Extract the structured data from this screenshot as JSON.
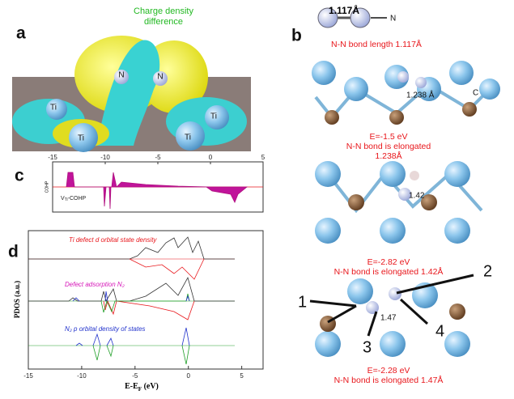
{
  "panel_a": {
    "letter": "a",
    "title": "Charge density difference",
    "atoms": [
      "N",
      "N",
      "Ti",
      "Ti",
      "Ti",
      "Ti"
    ]
  },
  "panel_b": {
    "letter": "b",
    "top_bond": "1.117Å",
    "top_atom": "N",
    "top_caption": "N-N bond  length 1.117Å",
    "s1_atom": "C",
    "s1_bond": "1.238 Å",
    "s1_caption": [
      "E=-1.5 eV",
      "N-N bond is elongated",
      "1.238Å"
    ],
    "s2_bond": "1.42",
    "s2_caption": [
      "E=-2.82 eV",
      "N-N bond is elongated 1.42Å"
    ],
    "s3_arrows": [
      "1",
      "2",
      "3",
      "4"
    ],
    "s3_bond": "1.47",
    "s3_caption": [
      "E=-2.28 eV",
      "N-N bond is elongated 1.47Å"
    ]
  },
  "panel_c": {
    "letter": "c",
    "ylabel": "COHP",
    "label_main": "V",
    "label_sub": "Ti",
    "label_rest": "-COHP",
    "xlim": [
      -15,
      5
    ],
    "xticks": [
      -15,
      -10,
      -5,
      0,
      5
    ]
  },
  "panel_d": {
    "letter": "d",
    "ylabel": "PDOS (a.u.)",
    "xlabel_main": "E-E",
    "xlabel_sub": "F",
    "xlabel_rest": " (eV)",
    "xlim": [
      -15,
      7
    ],
    "xticks": [
      -15,
      -10,
      -5,
      0,
      5
    ],
    "legend": [
      "Ti defect d orbital state density",
      "Defect adsorption N₂",
      "N₂ p orbital density of states"
    ]
  }
}
